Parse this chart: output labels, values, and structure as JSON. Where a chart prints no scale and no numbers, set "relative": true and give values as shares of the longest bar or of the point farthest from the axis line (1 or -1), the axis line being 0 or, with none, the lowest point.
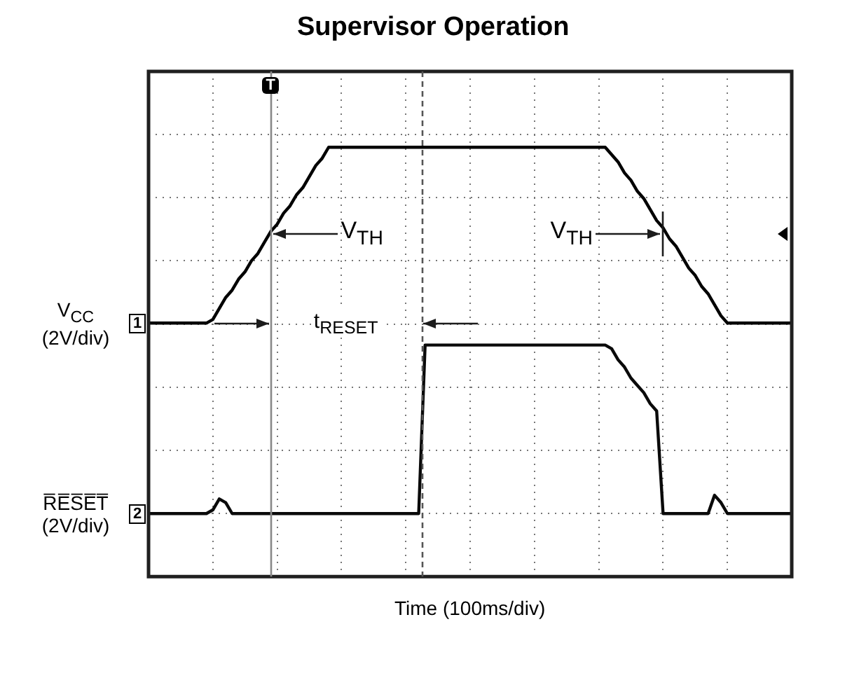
{
  "chart_data": {
    "type": "line",
    "title": "Supervisor Operation",
    "xlabel": "Time (100ms/div)",
    "relative": true,
    "categories": [
      null,
      null,
      null,
      null,
      null,
      null,
      null,
      null,
      null,
      null,
      null,
      null,
      null,
      null,
      null,
      null,
      null,
      null,
      null,
      null,
      null,
      null,
      null,
      null,
      null,
      null,
      null,
      null,
      null,
      null,
      null,
      null,
      null,
      null,
      null,
      null,
      null,
      null,
      null,
      null,
      null,
      null,
      null,
      null,
      null,
      null,
      null,
      null,
      null,
      null,
      null,
      null,
      null,
      null,
      null,
      null,
      null,
      null,
      null,
      null,
      null,
      null,
      null,
      null,
      null,
      null,
      null,
      null,
      null,
      null,
      null,
      null,
      null,
      null,
      null,
      null,
      null,
      null,
      null,
      null,
      null,
      null,
      null,
      null,
      null,
      null,
      null,
      null,
      null,
      null,
      null,
      null,
      null,
      null,
      null,
      null,
      null,
      null,
      null,
      null,
      null
    ],
    "grid": true,
    "legend": "left",
    "marker": "none",
    "line_style": "solid",
    "series": [
      {
        "name": "V$_{CC}$ (2V/div)",
        "color": "#000000",
        "values": [
          0.52,
          0.52,
          0.52,
          0.52,
          0.52,
          0.52,
          0.52,
          0.52,
          0.52,
          0.52,
          0.53,
          0.56,
          0.59,
          0.61,
          0.64,
          0.66,
          0.69,
          0.71,
          0.74,
          0.77,
          0.79,
          0.82,
          0.84,
          0.87,
          0.89,
          0.92,
          0.95,
          0.97,
          1,
          1,
          1,
          1,
          1,
          1,
          1,
          1,
          1,
          1,
          1,
          1,
          1,
          1,
          1,
          1,
          1,
          1,
          1,
          1,
          1,
          1,
          1,
          1,
          1,
          1,
          1,
          1,
          1,
          1,
          1,
          1,
          1,
          1,
          1,
          1,
          1,
          1,
          1,
          1,
          1,
          1,
          1,
          1,
          0.98,
          0.96,
          0.93,
          0.91,
          0.88,
          0.86,
          0.83,
          0.8,
          0.78,
          0.75,
          0.73,
          0.7,
          0.67,
          0.65,
          0.62,
          0.6,
          0.57,
          0.54,
          0.52,
          0.52,
          0.52,
          0.52,
          0.52,
          0.52,
          0.52,
          0.52,
          0.52,
          0.52,
          0.52
        ]
      },
      {
        "name": "R̅E̅S̅E̅T̅ (2V/div)",
        "color": "#0a0a0a",
        "values": [
          0,
          0,
          0,
          0,
          0,
          0,
          0,
          0,
          0,
          0,
          0.01,
          0.04,
          0.03,
          0,
          0,
          0,
          0,
          0,
          0,
          0,
          0,
          0,
          0,
          0,
          0,
          0,
          0,
          0,
          0,
          0,
          0,
          0,
          0,
          0,
          0,
          0,
          0,
          0,
          0,
          0,
          0,
          0,
          0,
          0.46,
          0.46,
          0.46,
          0.46,
          0.46,
          0.46,
          0.46,
          0.46,
          0.46,
          0.46,
          0.46,
          0.46,
          0.46,
          0.46,
          0.46,
          0.46,
          0.46,
          0.46,
          0.46,
          0.46,
          0.46,
          0.46,
          0.46,
          0.46,
          0.46,
          0.46,
          0.46,
          0.46,
          0.46,
          0.45,
          0.42,
          0.4,
          0.37,
          0.35,
          0.33,
          0.3,
          0.28,
          0,
          0,
          0,
          0,
          0,
          0,
          0,
          0,
          0.05,
          0.03,
          0,
          0,
          0,
          0,
          0,
          0,
          0,
          0,
          0,
          0,
          0
        ]
      }
    ],
    "annotations": [
      "V$_{TH}$",
      "V$_{TH}$",
      "t$_{RESET}$",
      "1",
      "2",
      "T"
    ]
  }
}
